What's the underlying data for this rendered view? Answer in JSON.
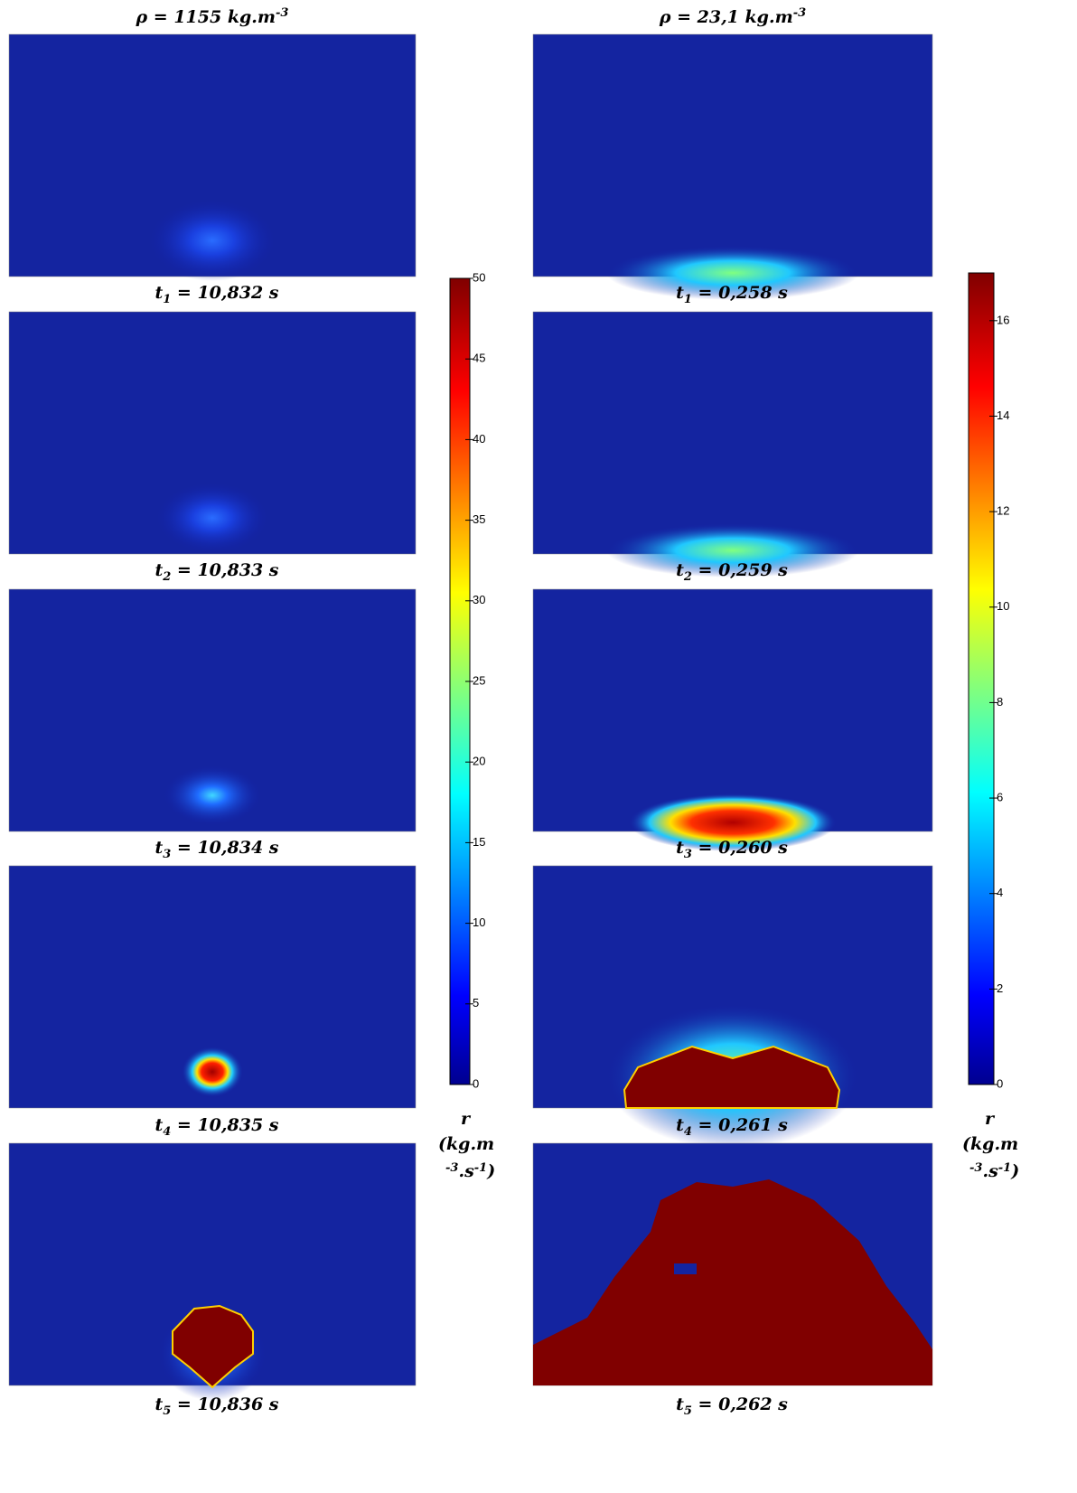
{
  "columns": [
    {
      "title": {
        "text": "ρ = 1155 kg.m",
        "sup": "-3"
      },
      "panels": [
        {
          "var": "t",
          "sub": "1",
          "rest": " = 10,832 s"
        },
        {
          "var": "t",
          "sub": "2",
          "rest": " = 10,833 s"
        },
        {
          "var": "t",
          "sub": "3",
          "rest": " = 10,834 s"
        },
        {
          "var": "t",
          "sub": "4",
          "rest": " = 10,835 s"
        },
        {
          "var": "t",
          "sub": "5",
          "rest": " = 10,836 s"
        }
      ],
      "colorbar": {
        "lim": [
          0,
          50
        ],
        "ticks": [
          0,
          5,
          10,
          15,
          20,
          25,
          30,
          35,
          40,
          45,
          50
        ],
        "label": {
          "symbol": "r",
          "unit": "(kg.m",
          "sup1": "-3",
          "mid": ".s",
          "sup2": "-1",
          "end": ")"
        }
      }
    },
    {
      "title": {
        "text": "ρ = 23,1 kg.m",
        "sup": "-3"
      },
      "panels": [
        {
          "var": "t",
          "sub": "1",
          "rest": " = 0,258 s"
        },
        {
          "var": "t",
          "sub": "2",
          "rest": " = 0,259 s"
        },
        {
          "var": "t",
          "sub": "3",
          "rest": " = 0,260 s"
        },
        {
          "var": "t",
          "sub": "4",
          "rest": " = 0,261 s"
        },
        {
          "var": "t",
          "sub": "5",
          "rest": " = 0,262 s"
        }
      ],
      "colorbar": {
        "lim": [
          0,
          17
        ],
        "ticks": [
          0,
          2,
          4,
          6,
          8,
          10,
          12,
          14,
          16
        ],
        "label": {
          "symbol": "r",
          "unit": "(kg.m",
          "sup1": "-3",
          "mid": ".s",
          "sup2": "-1",
          "end": ")"
        }
      }
    }
  ]
}
